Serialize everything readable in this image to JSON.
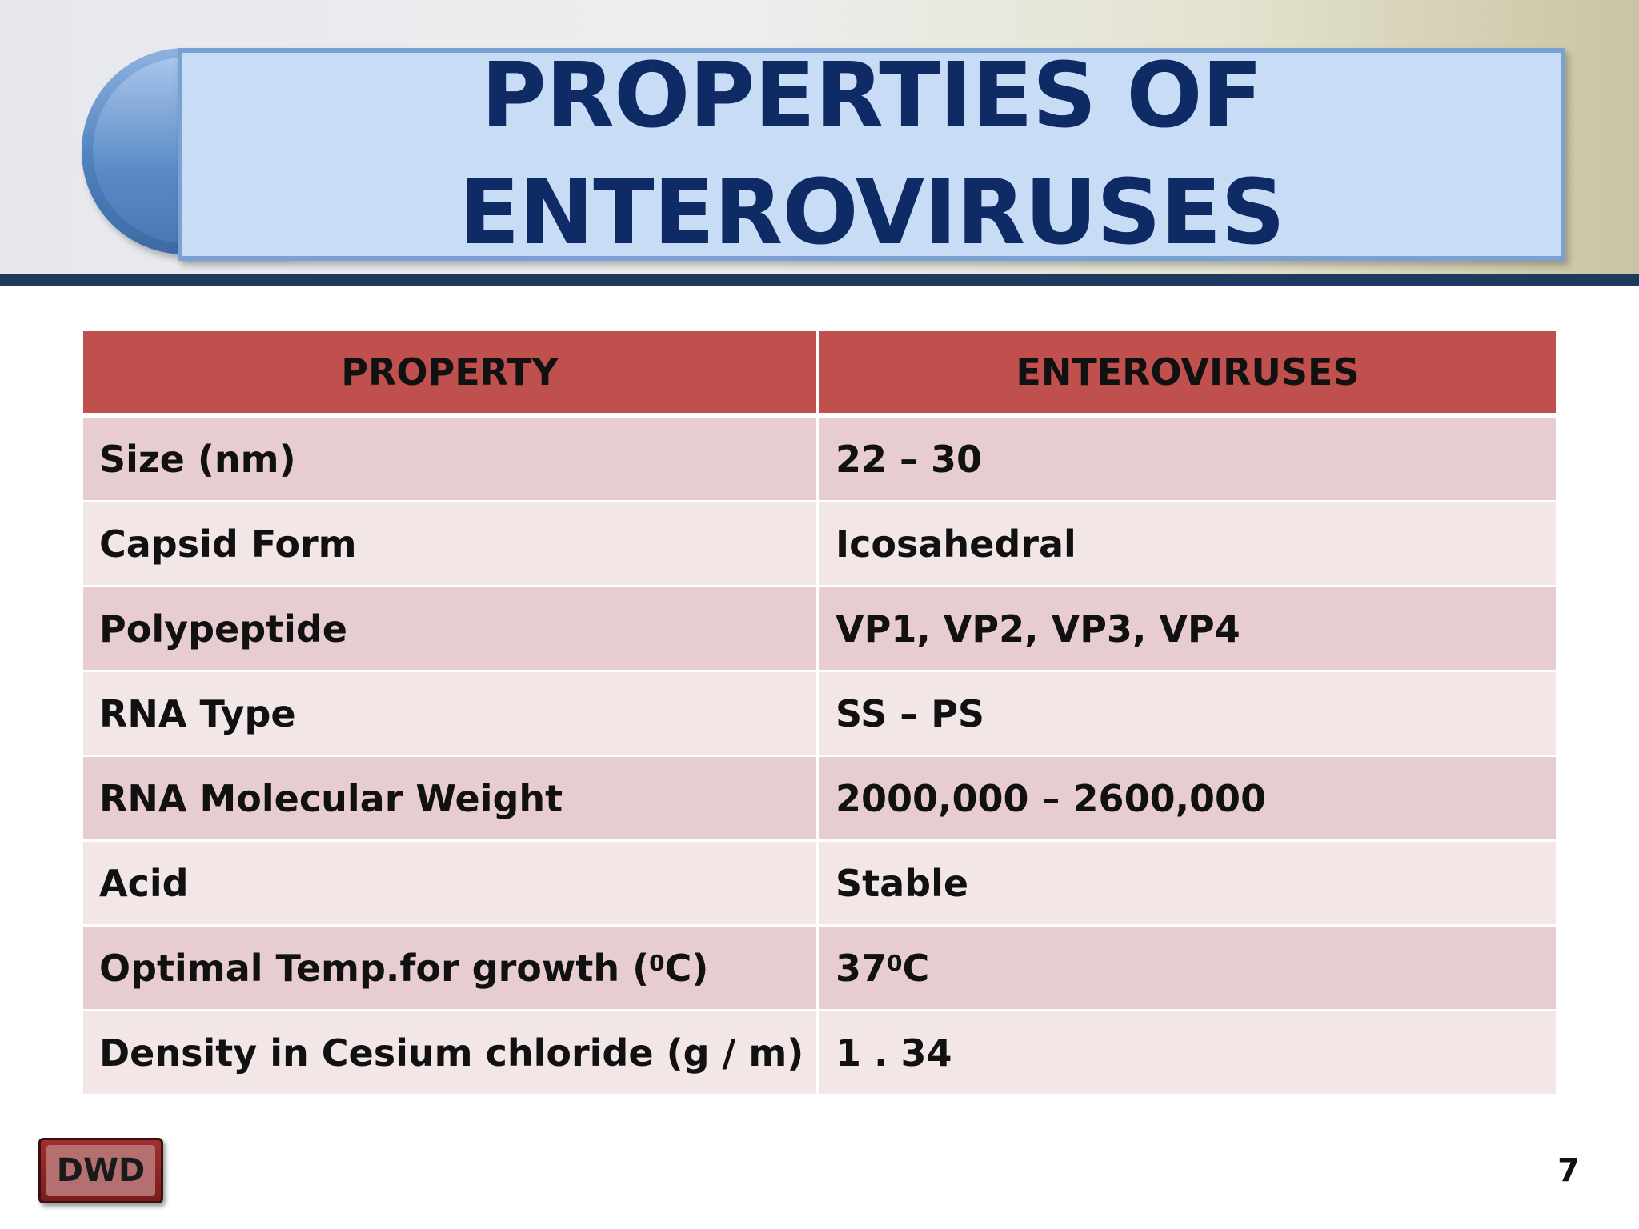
{
  "title": {
    "line1": "PROPERTIES OF",
    "line2": "ENTEROVIRUSES"
  },
  "table": {
    "headers": [
      "PROPERTY",
      "ENTEROVIRUSES"
    ],
    "rows": [
      {
        "property": "Size (nm)",
        "value": "22 – 30"
      },
      {
        "property": "Capsid Form",
        "value": "Icosahedral"
      },
      {
        "property": "Polypeptide",
        "value": "VP1, VP2, VP3, VP4"
      },
      {
        "property": "RNA Type",
        "value": "SS – PS"
      },
      {
        "property": "RNA Molecular Weight",
        "value": "2000,000 – 2600,000"
      },
      {
        "property": "Acid",
        "value": "Stable"
      },
      {
        "property_pre": "Optimal Temp.for growth (",
        "property_sup": "0",
        "property_post": " C)",
        "value_pre": "37",
        "value_sup": "0",
        "value_post": " C"
      },
      {
        "property": "Density in Cesium chloride (g / m)",
        "value": "1 . 34"
      }
    ]
  },
  "footer": {
    "badge": "DWD",
    "page_number": "7"
  },
  "colors": {
    "title_text": "#0e2b66",
    "header_row": "#c0504d",
    "row_dark": "#e8cdd0",
    "row_light": "#f3e6e7",
    "rule": "#1f3a5f"
  }
}
